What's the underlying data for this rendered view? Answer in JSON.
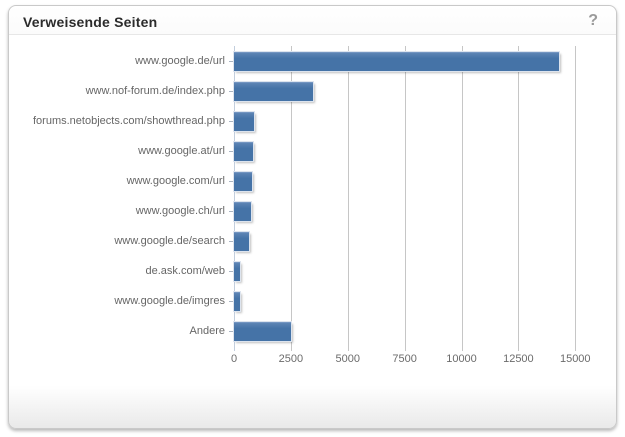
{
  "panel": {
    "title": "Verweisende Seiten",
    "help_icon": "?"
  },
  "colors": {
    "bar": "#4573A7",
    "bar_shadow": "rgba(0,0,0,0.25)",
    "gridline": "#c6c6c6",
    "axis_line": "#c2cedd",
    "label_text": "#666666",
    "title_text": "#2b2b2b",
    "help_icon": "#9a9a9a",
    "panel_border": "#c9c9c9"
  },
  "chart_data": {
    "type": "bar",
    "orientation": "horizontal",
    "title": "Verweisende Seiten",
    "categories": [
      "www.google.de/url",
      "www.nof-forum.de/index.php",
      "forums.netobjects.com/showthread.php",
      "www.google.at/url",
      "www.google.com/url",
      "www.google.ch/url",
      "www.google.de/search",
      "de.ask.com/web",
      "www.google.de/imgres",
      "Andere"
    ],
    "values": [
      14300,
      3480,
      880,
      820,
      790,
      750,
      650,
      250,
      250,
      2500
    ],
    "xlabel": "",
    "ylabel": "",
    "xticks": [
      0,
      2500,
      5000,
      7500,
      10000,
      12500,
      15000
    ],
    "xlim": [
      0,
      16000
    ],
    "grid": "vertical",
    "legend": "none"
  }
}
